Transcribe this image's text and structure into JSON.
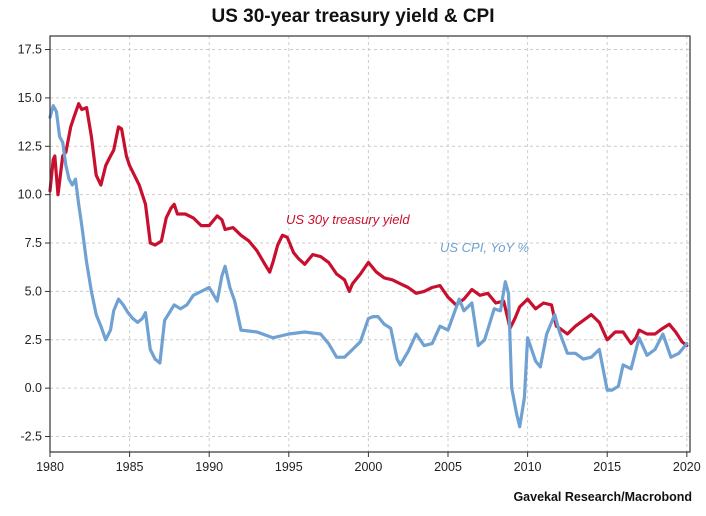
{
  "chart_data": {
    "type": "line",
    "title": "US 30-year treasury yield & CPI",
    "source": "Gavekal Research/Macrobond",
    "xlabel": "",
    "ylabel": "",
    "xlim": [
      1980,
      2020.2
    ],
    "ylim": [
      -3.3,
      18.2
    ],
    "x_ticks": [
      "1980",
      "1985",
      "1990",
      "1995",
      "2000",
      "2005",
      "2010",
      "2015",
      "2020"
    ],
    "y_ticks": [
      "-2.5",
      "0.0",
      "2.5",
      "5.0",
      "7.5",
      "10.0",
      "12.5",
      "15.0",
      "17.5"
    ],
    "grid": true,
    "colors": {
      "yield": "#c8102e",
      "cpi": "#6fa1d2",
      "axis": "#333333",
      "grid": "#cccccc"
    },
    "series": [
      {
        "name": "US 30y treasury yield",
        "color": "#c8102e",
        "x": [
          1980.0,
          1980.2,
          1980.3,
          1980.5,
          1980.8,
          1981.0,
          1981.3,
          1981.5,
          1981.8,
          1982.0,
          1982.3,
          1982.6,
          1982.9,
          1983.2,
          1983.5,
          1983.8,
          1984.0,
          1984.3,
          1984.5,
          1984.8,
          1985.0,
          1985.3,
          1985.6,
          1986.0,
          1986.3,
          1986.6,
          1987.0,
          1987.3,
          1987.6,
          1987.8,
          1988.0,
          1988.5,
          1989.0,
          1989.5,
          1990.0,
          1990.5,
          1990.8,
          1991.0,
          1991.5,
          1992.0,
          1992.5,
          1993.0,
          1993.5,
          1993.8,
          1994.0,
          1994.3,
          1994.6,
          1994.9,
          1995.3,
          1995.6,
          1996.0,
          1996.5,
          1997.0,
          1997.5,
          1998.0,
          1998.5,
          1998.8,
          1999.0,
          1999.5,
          2000.0,
          2000.5,
          2001.0,
          2001.5,
          2002.0,
          2002.5,
          2003.0,
          2003.5,
          2004.0,
          2004.5,
          2005.0,
          2005.5,
          2006.0,
          2006.5,
          2007.0,
          2007.5,
          2008.0,
          2008.5,
          2008.9,
          2009.2,
          2009.5,
          2010.0,
          2010.5,
          2011.0,
          2011.5,
          2011.8,
          2012.0,
          2012.5,
          2013.0,
          2013.5,
          2014.0,
          2014.5,
          2015.0,
          2015.5,
          2016.0,
          2016.5,
          2016.8,
          2017.0,
          2017.5,
          2018.0,
          2018.5,
          2018.9,
          2019.3,
          2019.7,
          2020.0
        ],
        "values": [
          10.2,
          11.8,
          12.0,
          10.0,
          12.0,
          12.2,
          13.5,
          14.0,
          14.7,
          14.4,
          14.5,
          13.0,
          11.0,
          10.5,
          11.5,
          12.0,
          12.3,
          13.5,
          13.4,
          12.0,
          11.5,
          11.0,
          10.5,
          9.5,
          7.5,
          7.4,
          7.6,
          8.8,
          9.3,
          9.5,
          9.0,
          9.0,
          8.8,
          8.4,
          8.4,
          8.9,
          8.7,
          8.2,
          8.3,
          7.9,
          7.6,
          7.1,
          6.4,
          6.0,
          6.5,
          7.4,
          7.9,
          7.8,
          7.0,
          6.7,
          6.4,
          6.9,
          6.8,
          6.5,
          5.9,
          5.6,
          5.0,
          5.4,
          5.9,
          6.5,
          6.0,
          5.7,
          5.6,
          5.4,
          5.2,
          4.9,
          5.0,
          5.2,
          5.3,
          4.7,
          4.3,
          4.6,
          5.1,
          4.8,
          4.9,
          4.4,
          4.5,
          3.1,
          3.6,
          4.2,
          4.6,
          4.1,
          4.4,
          4.3,
          3.2,
          3.1,
          2.8,
          3.2,
          3.5,
          3.8,
          3.4,
          2.5,
          2.9,
          2.9,
          2.3,
          2.6,
          3.0,
          2.8,
          2.8,
          3.1,
          3.3,
          2.9,
          2.4,
          2.2
        ]
      },
      {
        "name": "US CPI, YoY %",
        "color": "#6fa1d2",
        "x": [
          1980.0,
          1980.2,
          1980.4,
          1980.6,
          1980.8,
          1981.0,
          1981.2,
          1981.4,
          1981.6,
          1981.8,
          1982.0,
          1982.3,
          1982.6,
          1982.9,
          1983.2,
          1983.5,
          1983.8,
          1984.0,
          1984.3,
          1984.6,
          1984.9,
          1985.2,
          1985.5,
          1985.8,
          1986.0,
          1986.3,
          1986.6,
          1986.9,
          1987.2,
          1987.5,
          1987.8,
          1988.2,
          1988.6,
          1989.0,
          1989.5,
          1990.0,
          1990.5,
          1990.8,
          1991.0,
          1991.3,
          1991.6,
          1992.0,
          1993.0,
          1994.0,
          1995.0,
          1996.0,
          1997.0,
          1997.5,
          1998.0,
          1998.5,
          1999.0,
          1999.5,
          2000.0,
          2000.3,
          2000.6,
          2001.0,
          2001.4,
          2001.8,
          2002.0,
          2002.5,
          2003.0,
          2003.5,
          2004.0,
          2004.5,
          2005.0,
          2005.7,
          2006.0,
          2006.5,
          2006.9,
          2007.3,
          2007.9,
          2008.3,
          2008.6,
          2008.8,
          2009.0,
          2009.3,
          2009.5,
          2009.8,
          2010.0,
          2010.5,
          2010.8,
          2011.2,
          2011.7,
          2012.0,
          2012.5,
          2013.0,
          2013.5,
          2014.0,
          2014.5,
          2015.0,
          2015.3,
          2015.7,
          2016.0,
          2016.5,
          2017.0,
          2017.5,
          2018.0,
          2018.5,
          2019.0,
          2019.5,
          2020.0
        ],
        "values": [
          14.0,
          14.6,
          14.3,
          13.0,
          12.7,
          11.5,
          10.8,
          10.5,
          10.8,
          9.5,
          8.4,
          6.5,
          5.0,
          3.8,
          3.2,
          2.5,
          3.0,
          4.0,
          4.6,
          4.3,
          3.9,
          3.6,
          3.4,
          3.6,
          3.9,
          2.0,
          1.5,
          1.3,
          3.5,
          3.9,
          4.3,
          4.1,
          4.3,
          4.8,
          5.0,
          5.2,
          4.5,
          5.8,
          6.3,
          5.2,
          4.5,
          3.0,
          2.9,
          2.6,
          2.8,
          2.9,
          2.8,
          2.3,
          1.6,
          1.6,
          2.0,
          2.4,
          3.6,
          3.7,
          3.7,
          3.3,
          3.1,
          1.5,
          1.2,
          1.9,
          2.8,
          2.2,
          2.3,
          3.2,
          3.0,
          4.6,
          4.0,
          4.4,
          2.2,
          2.5,
          4.1,
          4.0,
          5.5,
          4.9,
          0.0,
          -1.3,
          -2.0,
          -0.5,
          2.6,
          1.4,
          1.1,
          2.8,
          3.8,
          2.9,
          1.8,
          1.8,
          1.5,
          1.6,
          2.0,
          -0.1,
          -0.1,
          0.1,
          1.2,
          1.0,
          2.6,
          1.7,
          2.0,
          2.8,
          1.6,
          1.8,
          2.3
        ]
      }
    ]
  }
}
